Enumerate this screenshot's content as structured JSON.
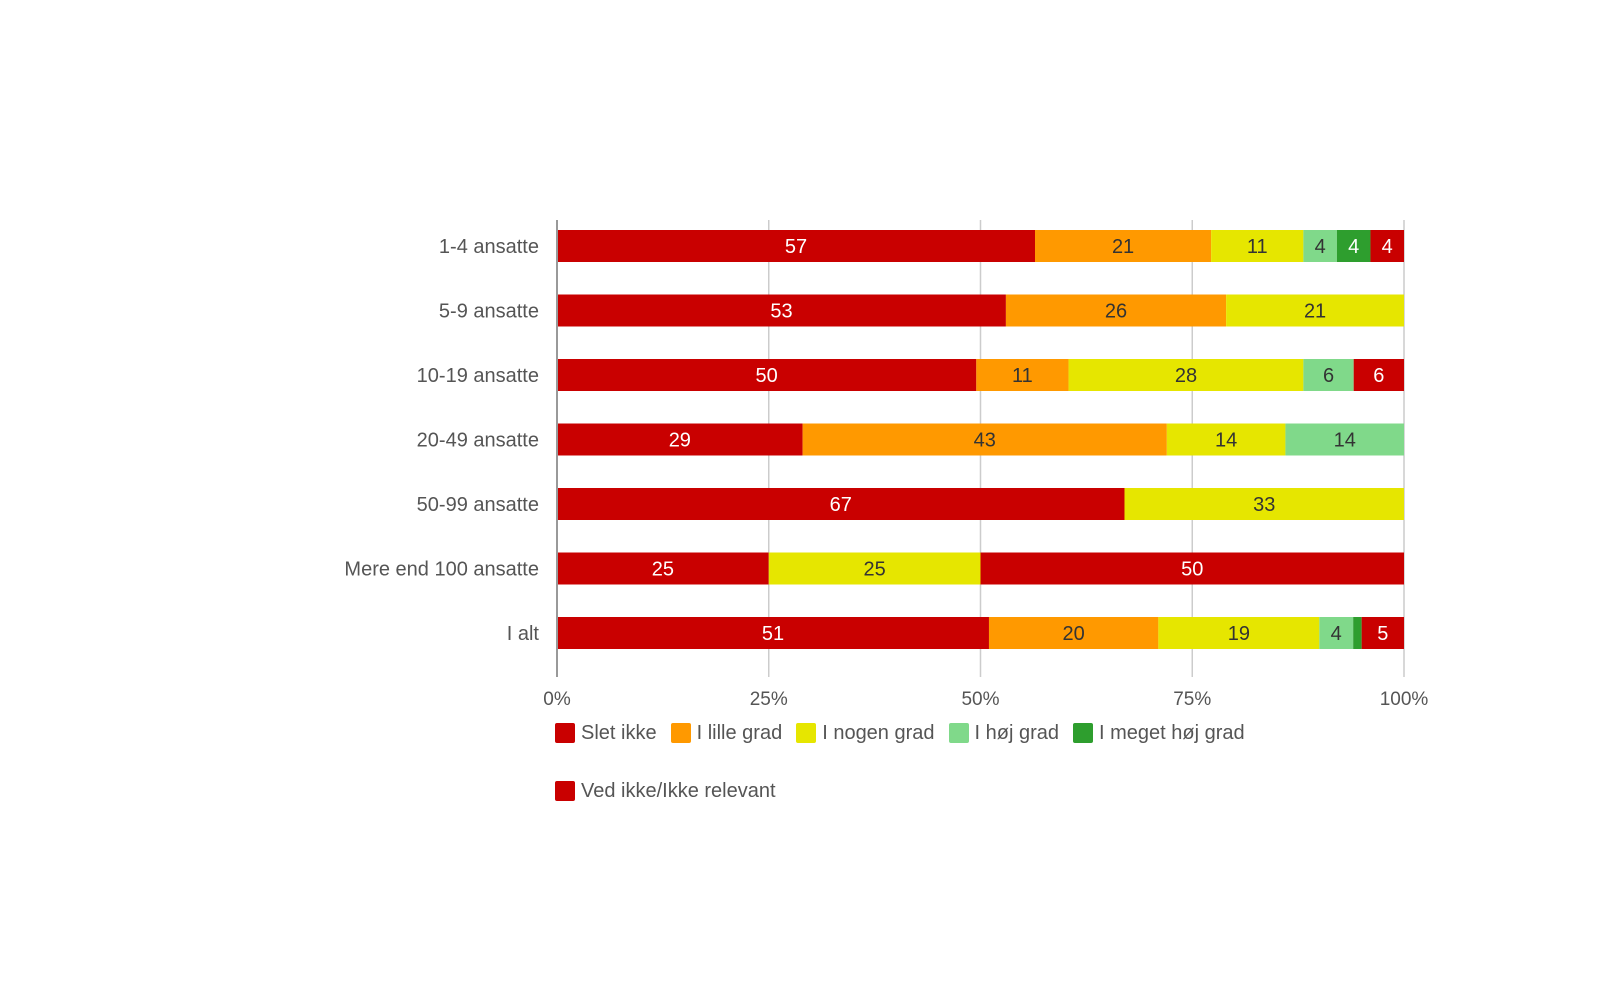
{
  "chart_data": {
    "type": "bar",
    "orientation": "horizontal",
    "stacked": "percent",
    "title": "",
    "xlabel": "",
    "ylabel": "",
    "xlim": [
      0,
      100
    ],
    "x_ticks": [
      "0%",
      "25%",
      "50%",
      "75%",
      "100%"
    ],
    "x_tick_values": [
      0,
      25,
      50,
      75,
      100
    ],
    "grid": true,
    "legend_position": "bottom",
    "categories": [
      "1-4 ansatte",
      "5-9 ansatte",
      "10-19 ansatte",
      "20-49 ansatte",
      "50-99 ansatte",
      "Mere end 100 ansatte",
      "I alt"
    ],
    "series": [
      {
        "name": "Slet ikke",
        "color": "#c90000",
        "label_color": "#ffffff",
        "values": [
          57,
          53,
          50,
          29,
          67,
          25,
          51
        ]
      },
      {
        "name": "I lille grad",
        "color": "#ff9900",
        "label_color": "#333333",
        "values": [
          21,
          26,
          11,
          43,
          0,
          0,
          20
        ]
      },
      {
        "name": "I nogen grad",
        "color": "#e6e600",
        "label_color": "#333333",
        "values": [
          11,
          21,
          28,
          14,
          33,
          25,
          19
        ]
      },
      {
        "name": "I høj grad",
        "color": "#80d98a",
        "label_color": "#333333",
        "values": [
          4,
          0,
          6,
          14,
          0,
          0,
          4
        ]
      },
      {
        "name": "I meget høj grad",
        "color": "#2e9e2e",
        "label_color": "#ffffff",
        "values": [
          4,
          0,
          0,
          0,
          0,
          0,
          1
        ]
      },
      {
        "name": "Ved ikke/Ikke relevant",
        "color": "#c90000",
        "label_color": "#ffffff",
        "values": [
          4,
          0,
          6,
          0,
          0,
          50,
          5
        ]
      }
    ]
  }
}
